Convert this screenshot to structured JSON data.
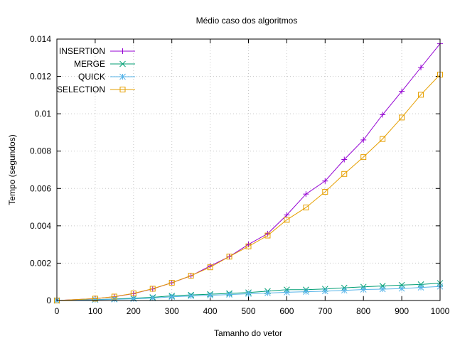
{
  "chart_data": {
    "type": "line",
    "title": "Médio caso dos algoritmos",
    "xlabel": "Tamanho do vetor",
    "ylabel": "Tempo (segundos)",
    "xlim": [
      0,
      1000
    ],
    "ylim": [
      0,
      0.014
    ],
    "grid": true,
    "legend_position": "top-left",
    "x_ticks": [
      "0",
      "100",
      "200",
      "300",
      "400",
      "500",
      "600",
      "700",
      "800",
      "900",
      "1000"
    ],
    "y_ticks": [
      "0",
      "0.002",
      "0.004",
      "0.006",
      "0.008",
      "0.01",
      "0.012",
      "0.014"
    ],
    "x": [
      0,
      100,
      150,
      200,
      250,
      300,
      350,
      400,
      450,
      500,
      550,
      600,
      650,
      700,
      750,
      800,
      850,
      900,
      950,
      1000
    ],
    "series": [
      {
        "name": "INSERTION",
        "color": "#9400d3",
        "marker": "plus",
        "values": [
          0.0,
          0.0001,
          0.0002,
          0.00037,
          0.00062,
          0.00095,
          0.00132,
          0.00185,
          0.00235,
          0.003,
          0.00358,
          0.00458,
          0.0057,
          0.0064,
          0.00755,
          0.0086,
          0.00995,
          0.0112,
          0.01248,
          0.01375
        ]
      },
      {
        "name": "MERGE",
        "color": "#009e73",
        "marker": "cross",
        "values": [
          0.0,
          5e-05,
          8e-05,
          0.00012,
          0.00017,
          0.00025,
          0.0003,
          0.00034,
          0.00038,
          0.00043,
          0.0005,
          0.00058,
          0.00058,
          0.00062,
          0.00068,
          0.00073,
          0.00078,
          0.00083,
          0.00086,
          0.00093
        ]
      },
      {
        "name": "QUICK",
        "color": "#56b4e9",
        "marker": "star",
        "values": [
          0.0,
          4e-05,
          6e-05,
          9e-05,
          0.00013,
          0.0002,
          0.00024,
          0.00028,
          0.00032,
          0.00036,
          0.0004,
          0.00044,
          0.00047,
          0.0005,
          0.00054,
          0.00059,
          0.00061,
          0.00064,
          0.0007,
          0.00075
        ]
      },
      {
        "name": "SELECTION",
        "color": "#e69f00",
        "marker": "square",
        "values": [
          0.0,
          0.0001,
          0.00021,
          0.00038,
          0.00063,
          0.00095,
          0.00133,
          0.00178,
          0.00235,
          0.0029,
          0.00348,
          0.00432,
          0.00498,
          0.00582,
          0.00678,
          0.00768,
          0.00865,
          0.0098,
          0.01102,
          0.0121
        ]
      }
    ]
  }
}
